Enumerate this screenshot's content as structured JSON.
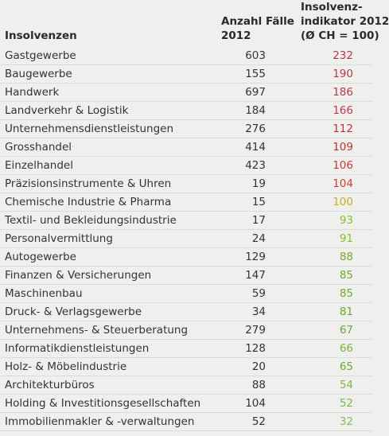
{
  "table": {
    "header": {
      "name": [
        "Insolvenzen"
      ],
      "count": [
        "Anzahl Fälle",
        "2012"
      ],
      "index": [
        "Insolvenz-",
        "indikator 2012",
        "(Ø CH = 100)"
      ]
    },
    "rows": [
      {
        "name": "Gastgewerbe",
        "count": 603,
        "index": 232,
        "color": "#b23a48"
      },
      {
        "name": "Baugewerbe",
        "count": 155,
        "index": 190,
        "color": "#b53a48"
      },
      {
        "name": "Handwerk",
        "count": 697,
        "index": 186,
        "color": "#b53a48"
      },
      {
        "name": "Landverkehr & Logistik",
        "count": 184,
        "index": 166,
        "color": "#b8404a"
      },
      {
        "name": "Unternehmensdienstleistungen",
        "count": 276,
        "index": 112,
        "color": "#c0303a"
      },
      {
        "name": "Grosshandel",
        "count": 414,
        "index": 109,
        "color": "#c23232"
      },
      {
        "name": "Einzelhandel",
        "count": 423,
        "index": 106,
        "color": "#c43a30"
      },
      {
        "name": "Präzisionsinstrumente & Uhren",
        "count": 19,
        "index": 104,
        "color": "#c84030"
      },
      {
        "name": "Chemische Industrie & Pharma",
        "count": 15,
        "index": 100,
        "color": "#c8b020"
      },
      {
        "name": "Textil- und Bekleidungsindustrie",
        "count": 17,
        "index": 93,
        "color": "#8cbf30"
      },
      {
        "name": "Personalvermittlung",
        "count": 24,
        "index": 91,
        "color": "#86bc30"
      },
      {
        "name": "Autogewerbe",
        "count": 129,
        "index": 88,
        "color": "#72ad2e"
      },
      {
        "name": "Finanzen & Versicherungen",
        "count": 147,
        "index": 85,
        "color": "#6eaa2e"
      },
      {
        "name": "Maschinenbau",
        "count": 59,
        "index": 85,
        "color": "#6eaa2e"
      },
      {
        "name": "Druck- & Verlagsgewerbe",
        "count": 34,
        "index": 81,
        "color": "#6ca82e"
      },
      {
        "name": "Unternehmens- & Steuerberatung",
        "count": 279,
        "index": 67,
        "color": "#6aa838"
      },
      {
        "name": "Informatikdienstleistungen",
        "count": 128,
        "index": 66,
        "color": "#78b440"
      },
      {
        "name": "Holz- & Möbelindustrie",
        "count": 20,
        "index": 65,
        "color": "#6aaa38"
      },
      {
        "name": "Architekturbüros",
        "count": 88,
        "index": 54,
        "color": "#7ab848"
      },
      {
        "name": "Holding & Investitionsgesellschaften",
        "count": 104,
        "index": 52,
        "color": "#7ab848"
      },
      {
        "name": "Immobilienmakler & -verwaltungen",
        "count": 52,
        "index": 32,
        "color": "#82bc58"
      }
    ]
  }
}
